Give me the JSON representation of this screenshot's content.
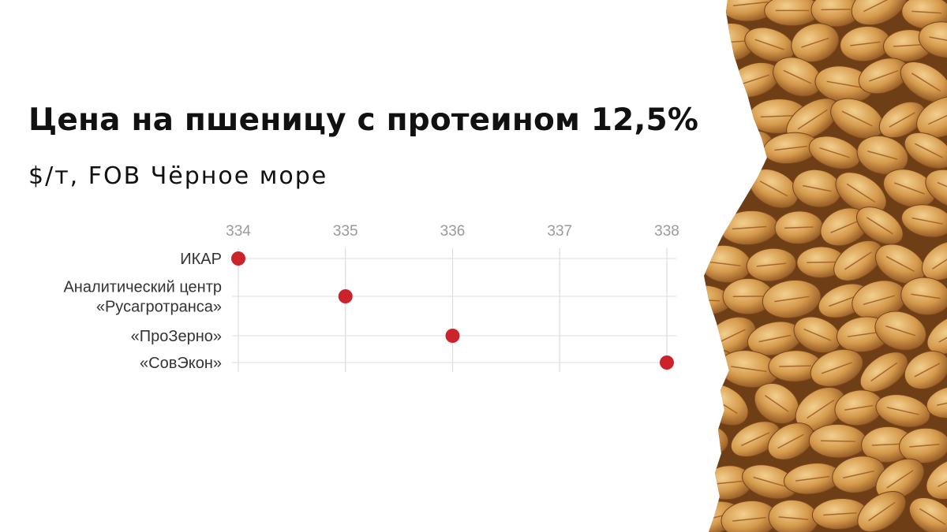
{
  "header": {
    "title": "Цена на пшеницу с протеином 12,5%",
    "subtitle": "$/т, FOB Чёрное море"
  },
  "photo": {
    "description_icon": "wheat-grains-photo",
    "base_color": "#c9893f"
  },
  "chart_data": {
    "type": "scatter",
    "categories": [
      [
        "ИКАР"
      ],
      [
        "Аналитический центр",
        "«Русагротранса»"
      ],
      [
        "«ПроЗерно»"
      ],
      [
        "«СовЭкон»"
      ]
    ],
    "values": [
      334,
      335,
      336,
      338
    ],
    "x_ticks": [
      334,
      335,
      336,
      337,
      338
    ],
    "xlim": [
      334,
      338
    ],
    "grid": true,
    "marker_color": "#cc2229"
  }
}
